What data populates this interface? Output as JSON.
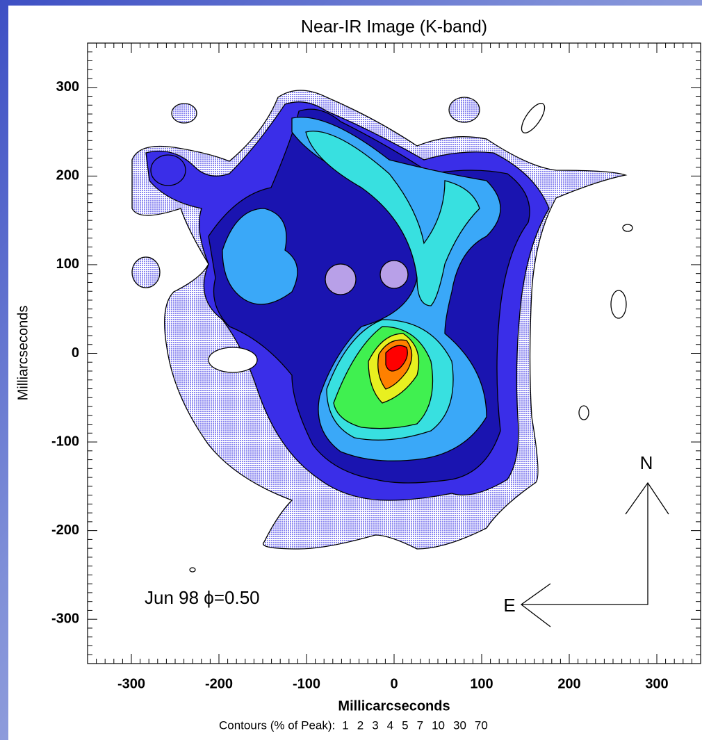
{
  "chart_data": {
    "type": "image",
    "title": "Near-IR Image (K-band)",
    "x_label": "Millicarcseconds",
    "y_label": "Milliarcseconds",
    "xlim": [
      -350,
      350
    ],
    "ylim": [
      -350,
      350
    ],
    "xticks": [
      -300,
      -200,
      -100,
      0,
      100,
      200,
      300
    ],
    "yticks": [
      -300,
      -200,
      -100,
      0,
      100,
      200,
      300
    ],
    "annotation": "Jun 98  ϕ=0.50",
    "north_label": "N",
    "east_label": "E",
    "contour_label": "Contours (% of Peak):",
    "contour_levels": [
      1,
      2,
      3,
      4,
      5,
      7,
      10,
      30,
      70
    ]
  }
}
